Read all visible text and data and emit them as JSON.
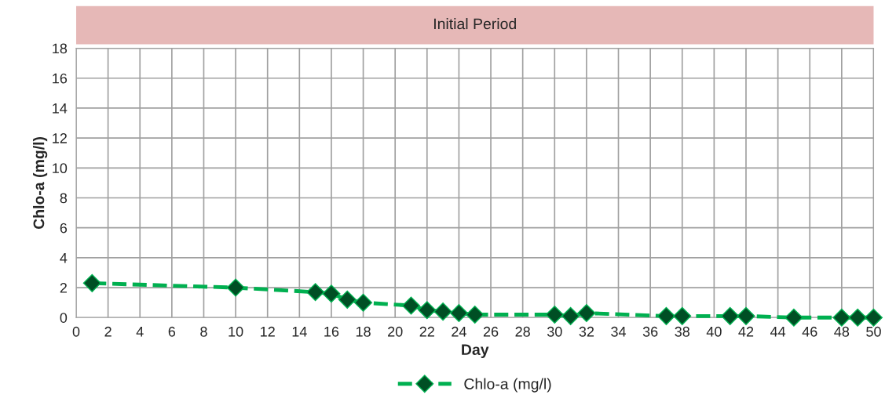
{
  "chart_data": {
    "type": "line",
    "xlabel": "Day",
    "ylabel": "Chlo-a (mg/l)",
    "x": [
      1,
      10,
      15,
      16,
      17,
      18,
      21,
      22,
      23,
      24,
      25,
      30,
      31,
      32,
      37,
      38,
      41,
      42,
      45,
      48,
      49,
      50
    ],
    "series": [
      {
        "name": "Chlo-a (mg/l)",
        "color": "#00b050",
        "values": [
          2.3,
          2.0,
          1.7,
          1.6,
          1.2,
          1.0,
          0.8,
          0.5,
          0.4,
          0.3,
          0.2,
          0.2,
          0.1,
          0.3,
          0.1,
          0.1,
          0.1,
          0.1,
          0.0,
          0.0,
          0.0,
          0.0
        ]
      }
    ],
    "xlim": [
      0,
      50
    ],
    "xticks": [
      0,
      2,
      4,
      6,
      8,
      10,
      12,
      14,
      16,
      18,
      20,
      22,
      24,
      26,
      28,
      30,
      32,
      34,
      36,
      38,
      40,
      42,
      44,
      46,
      48,
      50
    ],
    "ylim": [
      0,
      18
    ],
    "yticks": [
      0,
      2,
      4,
      6,
      8,
      10,
      12,
      14,
      16,
      18
    ],
    "title": "Initial Period",
    "grid": true,
    "legend": "bottom",
    "marker": "diamond",
    "line_style": "dashed"
  }
}
